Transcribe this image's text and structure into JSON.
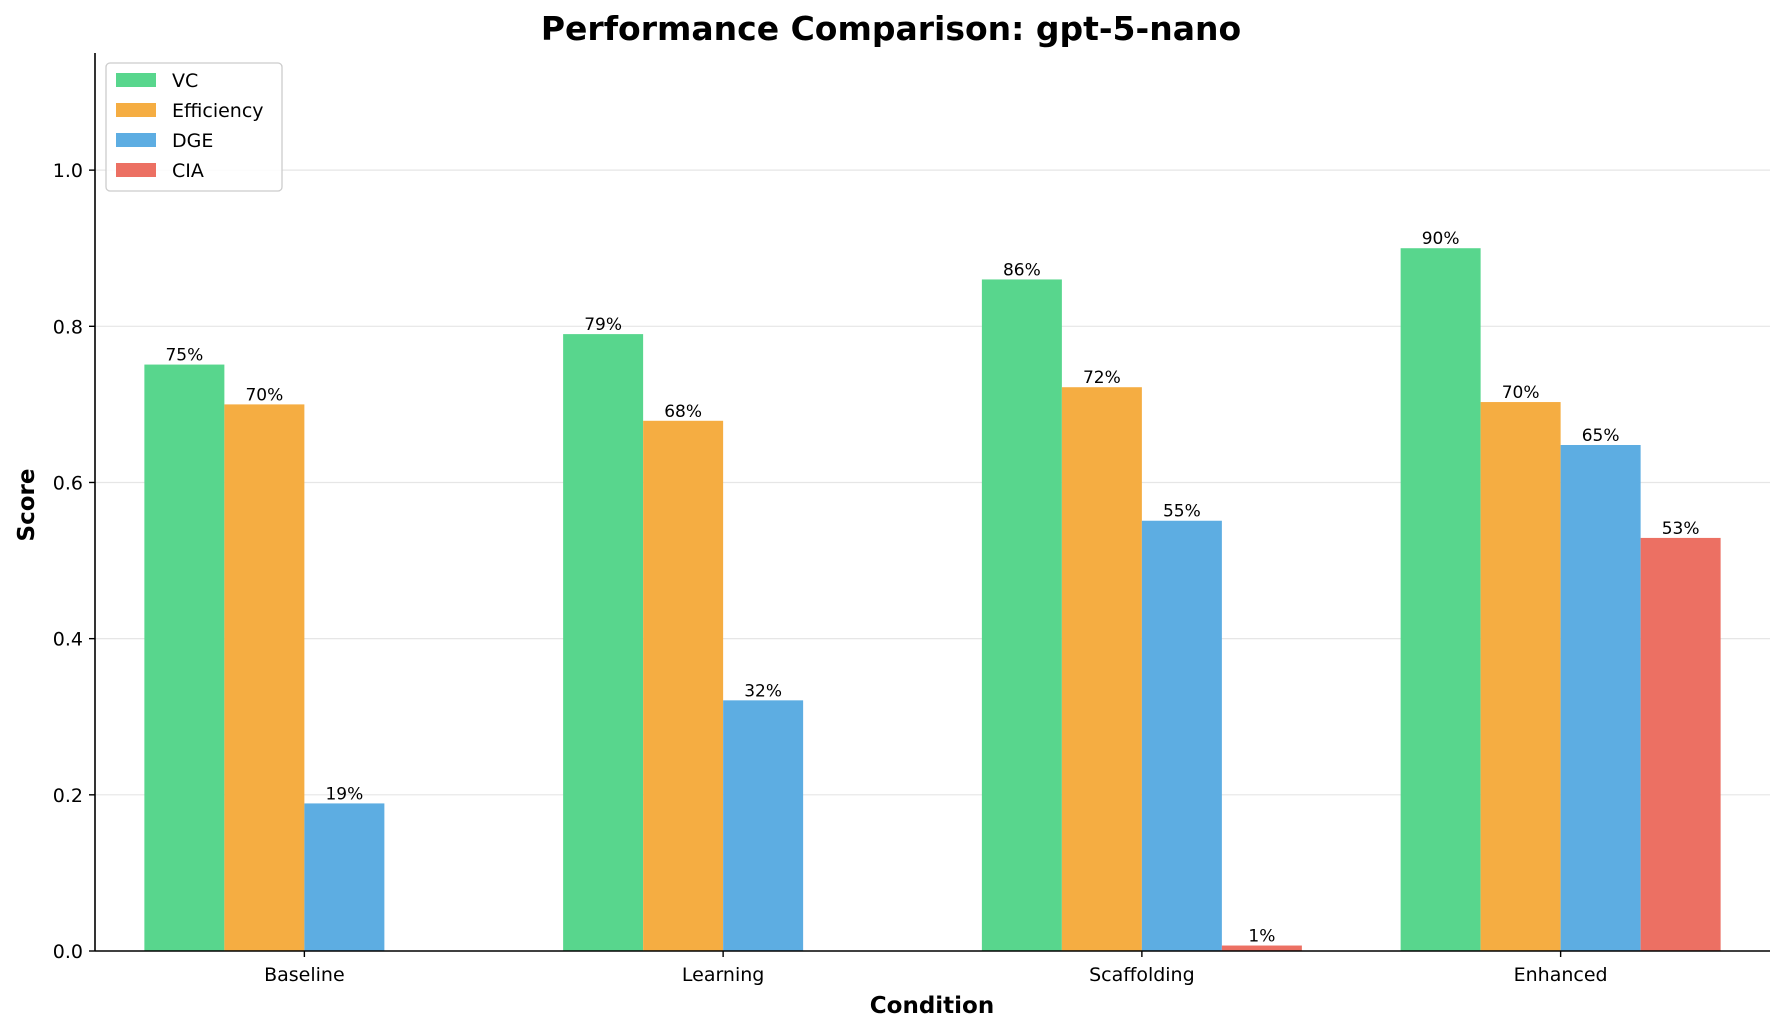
{
  "chart_data": {
    "type": "bar",
    "title": "Performance Comparison: gpt-5-nano",
    "xlabel": "Condition",
    "ylabel": "Score",
    "categories": [
      "Baseline",
      "Learning",
      "Scaffolding",
      "Enhanced"
    ],
    "ylim": [
      0,
      1.15
    ],
    "yticks": [
      0.0,
      0.2,
      0.4,
      0.6,
      0.8,
      1.0
    ],
    "ytick_labels": [
      "0.0",
      "0.2",
      "0.4",
      "0.6",
      "0.8",
      "1.0"
    ],
    "grid": "y",
    "legend_position": "upper left",
    "series": [
      {
        "name": "VC",
        "color": "#58D68D",
        "values": [
          0.751,
          0.79,
          0.86,
          0.9
        ],
        "labels": [
          "75%",
          "79%",
          "86%",
          "90%"
        ]
      },
      {
        "name": "Efficiency",
        "color": "#F5AD42",
        "values": [
          0.7,
          0.679,
          0.722,
          0.703
        ],
        "labels": [
          "70%",
          "68%",
          "72%",
          "70%"
        ]
      },
      {
        "name": "DGE",
        "color": "#5DADE2",
        "values": [
          0.189,
          0.321,
          0.551,
          0.648
        ],
        "labels": [
          "19%",
          "32%",
          "55%",
          "65%"
        ]
      },
      {
        "name": "CIA",
        "color": "#EC7063",
        "values": [
          null,
          null,
          0.007,
          0.529
        ],
        "labels": [
          null,
          null,
          "1%",
          "53%"
        ]
      }
    ]
  }
}
